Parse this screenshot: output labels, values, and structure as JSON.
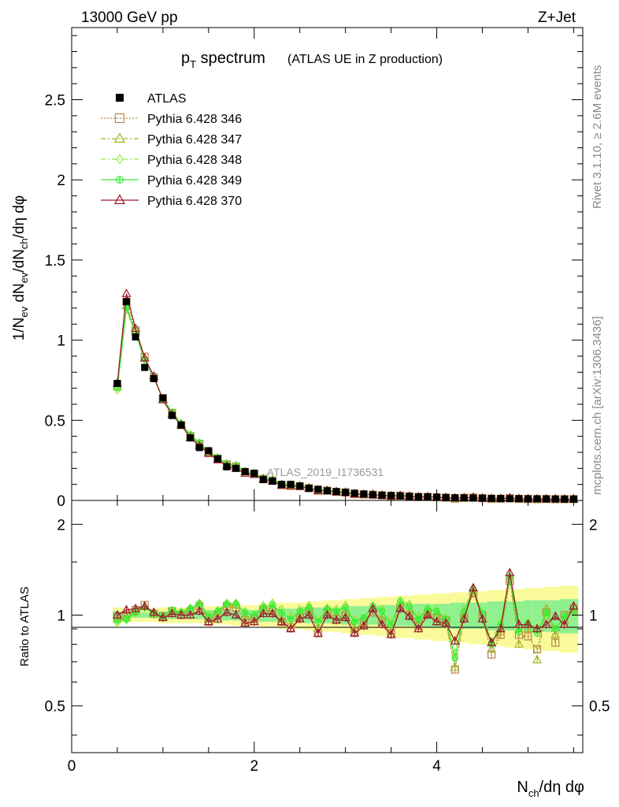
{
  "header": {
    "energy_label": "13000 GeV pp",
    "process_label": "Z+Jet"
  },
  "side": {
    "rivet_label": "Rivet 3.1.10, ≥ 2.6M events",
    "mcplots_label": "mcplots.cern.ch [arXiv:1306.3436]"
  },
  "watermark": "ATLAS_2019_I1736531",
  "chart_data": {
    "type": "scatter",
    "title_main": "p",
    "title_sub": "T",
    "title_rest": " spectrum",
    "title_note": "(ATLAS UE in Z production)",
    "xlabel": "N",
    "xlabel_sub": "ch",
    "xlabel_rest": "/dη dφ",
    "ylabel": "1/N",
    "ylabel_sub1": "ev",
    "ylabel_mid1": " dN",
    "ylabel_sub2": "ev",
    "ylabel_mid2": "/dN",
    "ylabel_sub3": "ch",
    "ylabel_rest": "/dη dφ",
    "ratio_ylabel": "Ratio to ATLAS",
    "xlim": [
      0,
      5.6
    ],
    "ylim": [
      0,
      2.95
    ],
    "ratio_ylim": [
      0.35,
      2.4
    ],
    "ratio_log": true,
    "x_ticks": [
      "0",
      "2",
      "4"
    ],
    "y_ticks": [
      "0",
      "0.5",
      "1",
      "1.5",
      "2",
      "2.5"
    ],
    "ratio_ticks": [
      "0.5",
      "1",
      "2"
    ],
    "legend_position": "top-left",
    "legend": [
      {
        "name": "ATLAS",
        "color": "#000000",
        "marker": "square-filled",
        "line": "none"
      },
      {
        "name": "Pythia 6.428 346",
        "color": "#b8864b",
        "marker": "square-open",
        "line": "dotted"
      },
      {
        "name": "Pythia 6.428 347",
        "color": "#a5b52a",
        "marker": "triangle-open",
        "line": "dashdot"
      },
      {
        "name": "Pythia 6.428 348",
        "color": "#9be84c",
        "marker": "diamond-open",
        "line": "dashdot"
      },
      {
        "name": "Pythia 6.428 349",
        "color": "#33ee33",
        "marker": "circle-plus",
        "line": "solid"
      },
      {
        "name": "Pythia 6.428 370",
        "color": "#9b1a2c",
        "marker": "triangle-open",
        "line": "solid"
      }
    ],
    "x": [
      0.5,
      0.6,
      0.7,
      0.8,
      0.9,
      1.0,
      1.1,
      1.2,
      1.3,
      1.4,
      1.5,
      1.6,
      1.7,
      1.8,
      1.9,
      2.0,
      2.1,
      2.2,
      2.3,
      2.4,
      2.5,
      2.6,
      2.7,
      2.8,
      2.9,
      3.0,
      3.1,
      3.2,
      3.3,
      3.4,
      3.5,
      3.6,
      3.7,
      3.8,
      3.9,
      4.0,
      4.1,
      4.2,
      4.3,
      4.4,
      4.5,
      4.6,
      4.7,
      4.8,
      4.9,
      5.0,
      5.1,
      5.2,
      5.3,
      5.4,
      5.5
    ],
    "data": [
      0.73,
      1.24,
      1.02,
      0.83,
      0.76,
      0.64,
      0.53,
      0.47,
      0.39,
      0.33,
      0.31,
      0.26,
      0.21,
      0.2,
      0.18,
      0.17,
      0.13,
      0.12,
      0.1,
      0.1,
      0.09,
      0.075,
      0.07,
      0.06,
      0.055,
      0.05,
      0.045,
      0.04,
      0.035,
      0.033,
      0.031,
      0.028,
      0.025,
      0.023,
      0.022,
      0.02,
      0.018,
      0.017,
      0.016,
      0.015,
      0.014,
      0.013,
      0.012,
      0.011,
      0.011,
      0.01,
      0.01,
      0.009,
      0.009,
      0.008,
      0.008
    ],
    "series": [
      {
        "name": "Pythia 6.428 346",
        "ratio": [
          0.99,
          1.0,
          1.04,
          1.08,
          1.01,
          0.99,
          1.03,
          1.0,
          1.03,
          1.07,
          0.95,
          1.0,
          1.07,
          1.06,
          0.96,
          0.97,
          1.04,
          1.03,
          0.95,
          0.91,
          0.98,
          1.03,
          0.87,
          1.02,
          0.97,
          1.0,
          0.88,
          0.94,
          1.02,
          0.95,
          0.87,
          1.06,
          1.0,
          0.92,
          1.01,
          0.98,
          0.96,
          0.66,
          0.98,
          1.18,
          1.0,
          0.74,
          0.86,
          1.3,
          0.86,
          0.85,
          0.77,
          1.02,
          0.81,
          1.0,
          1.05
        ]
      },
      {
        "name": "Pythia 6.428 347",
        "ratio": [
          0.97,
          0.98,
          1.03,
          1.07,
          1.01,
          0.99,
          1.03,
          1.02,
          1.04,
          1.08,
          0.97,
          1.02,
          1.08,
          1.08,
          0.99,
          0.98,
          1.05,
          1.05,
          0.97,
          0.93,
          1.0,
          1.05,
          0.9,
          1.04,
          1.0,
          1.02,
          0.9,
          0.95,
          1.05,
          0.97,
          0.89,
          1.08,
          1.02,
          0.94,
          1.03,
          0.99,
          0.95,
          0.67,
          0.99,
          1.2,
          0.97,
          0.77,
          0.88,
          1.32,
          0.8,
          0.9,
          0.71,
          1.05,
          0.86,
          0.96,
          1.03
        ]
      },
      {
        "name": "Pythia 6.428 348",
        "ratio": [
          0.94,
          0.96,
          1.01,
          1.06,
          1.0,
          0.98,
          1.04,
          1.03,
          1.06,
          1.1,
          1.0,
          1.04,
          1.1,
          1.1,
          1.03,
          1.0,
          1.08,
          1.1,
          1.05,
          1.0,
          1.05,
          1.08,
          0.97,
          1.06,
          1.05,
          1.08,
          0.97,
          0.98,
          1.08,
          1.05,
          0.95,
          1.12,
          1.09,
          0.99,
          1.05,
          1.05,
          0.98,
          0.75,
          1.05,
          1.22,
          1.02,
          0.82,
          0.95,
          1.35,
          0.9,
          0.95,
          0.9,
          1.0,
          0.91,
          0.98,
          1.02
        ]
      },
      {
        "name": "Pythia 6.428 349",
        "ratio": [
          0.96,
          0.97,
          1.02,
          1.06,
          1.01,
          0.99,
          1.04,
          1.02,
          1.05,
          1.09,
          0.99,
          1.03,
          1.09,
          1.09,
          1.02,
          1.0,
          1.06,
          1.08,
          1.02,
          0.97,
          1.03,
          1.06,
          0.95,
          1.05,
          1.03,
          1.06,
          0.95,
          0.98,
          1.07,
          1.03,
          0.93,
          1.11,
          1.07,
          0.97,
          1.05,
          1.03,
          0.97,
          0.72,
          1.03,
          1.21,
          1.01,
          0.8,
          0.93,
          1.34,
          0.88,
          0.94,
          0.87,
          1.02,
          0.9,
          0.99,
          1.03
        ]
      },
      {
        "name": "Pythia 6.428 370",
        "ratio": [
          1.0,
          1.04,
          1.05,
          1.07,
          1.02,
          0.98,
          1.01,
          1.0,
          1.0,
          1.03,
          0.95,
          0.97,
          1.02,
          1.0,
          0.94,
          0.95,
          1.01,
          1.01,
          0.95,
          0.9,
          0.97,
          1.0,
          0.87,
          1.0,
          0.96,
          0.98,
          0.87,
          0.92,
          1.05,
          0.93,
          0.86,
          1.05,
          0.99,
          0.9,
          1.0,
          0.95,
          0.94,
          0.82,
          0.97,
          1.23,
          0.97,
          0.81,
          0.9,
          1.38,
          0.93,
          0.93,
          0.9,
          0.93,
          0.99,
          0.93,
          1.07
        ]
      }
    ],
    "band_outer": [
      0.06,
      0.05,
      0.05,
      0.05,
      0.05,
      0.06,
      0.06,
      0.06,
      0.06,
      0.06,
      0.07,
      0.07,
      0.07,
      0.08,
      0.08,
      0.08,
      0.09,
      0.09,
      0.1,
      0.1,
      0.1,
      0.11,
      0.11,
      0.12,
      0.12,
      0.13,
      0.13,
      0.14,
      0.14,
      0.15,
      0.15,
      0.16,
      0.16,
      0.17,
      0.17,
      0.18,
      0.18,
      0.19,
      0.19,
      0.2,
      0.2,
      0.21,
      0.21,
      0.22,
      0.22,
      0.23,
      0.23,
      0.24,
      0.24,
      0.25,
      0.25
    ],
    "band_inner": [
      0.03,
      0.02,
      0.02,
      0.02,
      0.02,
      0.03,
      0.03,
      0.03,
      0.03,
      0.03,
      0.04,
      0.04,
      0.04,
      0.04,
      0.04,
      0.04,
      0.05,
      0.05,
      0.05,
      0.05,
      0.05,
      0.06,
      0.06,
      0.06,
      0.06,
      0.07,
      0.07,
      0.07,
      0.07,
      0.08,
      0.08,
      0.08,
      0.08,
      0.09,
      0.09,
      0.09,
      0.09,
      0.1,
      0.1,
      0.1,
      0.1,
      0.11,
      0.11,
      0.11,
      0.11,
      0.12,
      0.12,
      0.12,
      0.12,
      0.13,
      0.13
    ],
    "colors": {
      "band_outer": "#fafa9a",
      "band_inner": "#8ff08f"
    }
  }
}
